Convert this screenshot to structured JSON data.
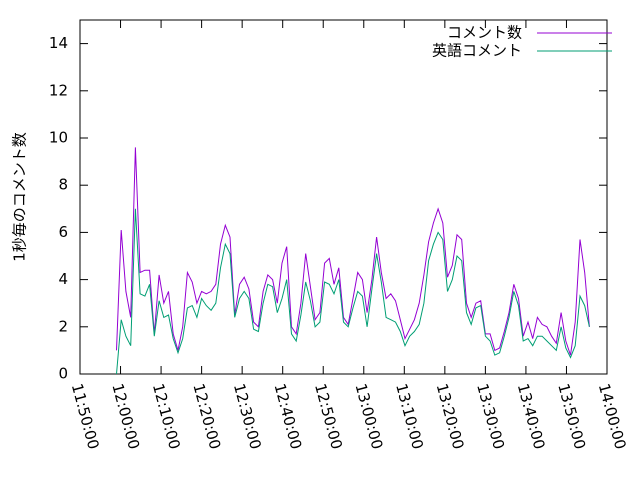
{
  "chart_data": {
    "type": "line",
    "ylabel": "1秒毎のコメント数",
    "x": [
      "11:59:00",
      "12:00:10",
      "12:01:20",
      "12:02:30",
      "12:03:40",
      "12:04:50",
      "12:06:00",
      "12:07:10",
      "12:08:20",
      "12:09:30",
      "12:10:40",
      "12:11:50",
      "12:13:00",
      "12:14:10",
      "12:15:20",
      "12:16:30",
      "12:17:40",
      "12:18:50",
      "12:20:00",
      "12:21:10",
      "12:22:20",
      "12:23:30",
      "12:24:40",
      "12:25:50",
      "12:27:00",
      "12:28:10",
      "12:29:20",
      "12:30:30",
      "12:31:40",
      "12:32:50",
      "12:34:00",
      "12:35:10",
      "12:36:20",
      "12:37:30",
      "12:38:40",
      "12:39:50",
      "12:41:00",
      "12:42:10",
      "12:43:20",
      "12:44:30",
      "12:45:40",
      "12:46:50",
      "12:48:00",
      "12:49:10",
      "12:50:20",
      "12:51:30",
      "12:52:40",
      "12:53:50",
      "12:55:00",
      "12:56:10",
      "12:57:20",
      "12:58:30",
      "12:59:40",
      "13:00:50",
      "13:02:00",
      "13:03:10",
      "13:04:20",
      "13:05:30",
      "13:06:40",
      "13:07:50",
      "13:09:00",
      "13:10:10",
      "13:11:20",
      "13:12:30",
      "13:13:40",
      "13:14:50",
      "13:16:00",
      "13:17:10",
      "13:18:20",
      "13:19:30",
      "13:20:40",
      "13:21:50",
      "13:23:00",
      "13:24:10",
      "13:25:20",
      "13:26:30",
      "13:27:40",
      "13:28:50",
      "13:30:00",
      "13:31:10",
      "13:32:20",
      "13:33:30",
      "13:34:40",
      "13:35:50",
      "13:37:00",
      "13:38:10",
      "13:39:20",
      "13:40:30",
      "13:41:40",
      "13:42:50",
      "13:44:00",
      "13:45:10",
      "13:46:20",
      "13:47:30",
      "13:48:40",
      "13:49:50",
      "13:51:00",
      "13:52:10",
      "13:53:20",
      "13:54:30",
      "13:55:40"
    ],
    "series": [
      {
        "name": "コメント数",
        "color": "#9400d3",
        "values": [
          1.0,
          6.1,
          3.5,
          2.4,
          9.6,
          4.3,
          4.4,
          4.4,
          1.7,
          4.2,
          3.0,
          3.5,
          1.7,
          1.0,
          2.0,
          4.3,
          3.9,
          3.0,
          3.5,
          3.4,
          3.5,
          3.8,
          5.5,
          6.3,
          5.8,
          2.5,
          3.8,
          4.1,
          3.6,
          2.2,
          2.0,
          3.5,
          4.2,
          4.0,
          3.0,
          4.7,
          5.4,
          2.0,
          1.7,
          3.0,
          5.1,
          3.7,
          2.3,
          2.6,
          4.7,
          4.9,
          3.8,
          4.5,
          2.4,
          2.1,
          3.2,
          4.3,
          4.0,
          2.6,
          4.0,
          5.8,
          4.3,
          3.2,
          3.4,
          3.1,
          2.3,
          1.5,
          1.9,
          2.3,
          3.0,
          4.2,
          5.6,
          6.4,
          7.0,
          6.4,
          4.1,
          4.6,
          5.9,
          5.7,
          3.0,
          2.4,
          3.0,
          3.1,
          1.7,
          1.7,
          1.0,
          1.1,
          1.8,
          2.6,
          3.8,
          3.2,
          1.6,
          2.2,
          1.5,
          2.4,
          2.1,
          2.0,
          1.6,
          1.3,
          2.6,
          1.4,
          0.8,
          2.2,
          5.7,
          4.3,
          2.0
        ]
      },
      {
        "name": "英語コメント",
        "color": "#009e73",
        "values": [
          0.0,
          2.3,
          1.6,
          1.2,
          7.0,
          3.4,
          3.3,
          3.8,
          1.6,
          3.1,
          2.4,
          2.5,
          1.5,
          0.9,
          1.5,
          2.8,
          2.9,
          2.4,
          3.2,
          2.9,
          2.7,
          3.0,
          4.5,
          5.5,
          5.1,
          2.4,
          3.2,
          3.5,
          3.2,
          1.9,
          1.8,
          3.0,
          3.8,
          3.7,
          2.6,
          3.2,
          4.0,
          1.7,
          1.4,
          2.5,
          3.9,
          3.1,
          2.0,
          2.2,
          3.9,
          3.8,
          3.4,
          4.0,
          2.2,
          2.0,
          2.8,
          3.5,
          3.3,
          2.0,
          3.6,
          5.1,
          3.9,
          2.4,
          2.3,
          2.2,
          1.8,
          1.2,
          1.6,
          1.8,
          2.1,
          3.0,
          4.8,
          5.5,
          6.0,
          5.7,
          3.5,
          4.0,
          5.0,
          4.8,
          2.6,
          2.1,
          2.8,
          2.9,
          1.6,
          1.4,
          0.8,
          0.9,
          1.6,
          2.4,
          3.5,
          2.9,
          1.4,
          1.5,
          1.2,
          1.6,
          1.6,
          1.4,
          1.2,
          1.0,
          2.0,
          1.1,
          0.7,
          1.2,
          3.3,
          2.9,
          2.0
        ]
      }
    ],
    "xlim": [
      "11:50:00",
      "14:00:00"
    ],
    "xticks": [
      "11:50:00",
      "12:00:00",
      "12:10:00",
      "12:20:00",
      "12:30:00",
      "12:40:00",
      "12:50:00",
      "13:00:00",
      "13:10:00",
      "13:20:00",
      "13:30:00",
      "13:40:00",
      "13:50:00",
      "14:00:00"
    ],
    "ylim": [
      0,
      15
    ],
    "yticks": [
      0,
      2,
      4,
      6,
      8,
      10,
      12,
      14
    ],
    "grid": false,
    "legend": "top-right"
  }
}
